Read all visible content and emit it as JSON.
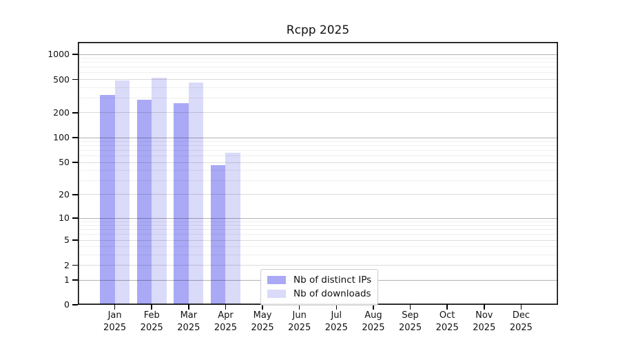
{
  "title": "Rcpp 2025",
  "chart_data": {
    "type": "bar",
    "title": "Rcpp 2025",
    "categories": [
      "Jan 2025",
      "Feb 2025",
      "Mar 2025",
      "Apr 2025",
      "May 2025",
      "Jun 2025",
      "Jul 2025",
      "Aug 2025",
      "Sep 2025",
      "Oct 2025",
      "Nov 2025",
      "Dec 2025"
    ],
    "series": [
      {
        "name": "Nb of distinct IPs",
        "color": "#a9a9f6",
        "values": [
          325,
          286,
          258,
          46,
          0,
          0,
          0,
          0,
          0,
          0,
          0,
          0
        ]
      },
      {
        "name": "Nb of downloads",
        "color": "#dadaf9",
        "values": [
          490,
          530,
          457,
          66,
          0,
          0,
          0,
          0,
          0,
          0,
          0,
          0
        ]
      }
    ],
    "xlabel": "",
    "ylabel": "",
    "y_axis": {
      "scale": "log1p",
      "ticks": [
        0,
        1,
        2,
        5,
        10,
        20,
        50,
        100,
        200,
        500,
        1000
      ],
      "emphasized_ticks": [
        1,
        10,
        100,
        1000
      ],
      "minor_ticks": [
        3,
        4,
        6,
        7,
        8,
        9,
        30,
        40,
        60,
        70,
        80,
        90,
        300,
        400,
        600,
        700,
        800,
        900
      ],
      "ylim": [
        0,
        1400
      ],
      "grid": true
    },
    "legend": {
      "position": "lower-center-left",
      "entries": [
        "Nb of distinct IPs",
        "Nb of downloads"
      ]
    }
  }
}
